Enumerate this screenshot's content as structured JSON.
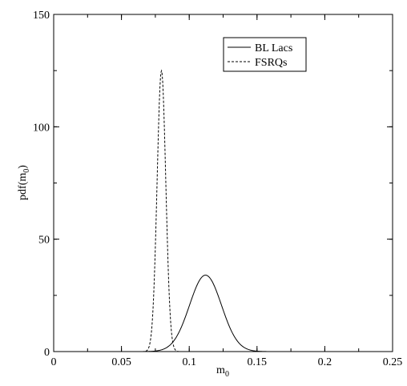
{
  "chart_data": {
    "type": "line",
    "title": "",
    "xlabel": "m",
    "xlabel_subscript": "0",
    "ylabel": "pdf(m",
    "ylabel_subscript": "0",
    "ylabel_suffix": ")",
    "xlim": [
      0,
      0.25
    ],
    "ylim": [
      0,
      150
    ],
    "xticks": [
      0,
      0.05,
      0.1,
      0.15,
      0.2,
      0.25
    ],
    "xtick_labels": [
      "0",
      "0.05",
      "0.1",
      "0.15",
      "0.2",
      "0.25"
    ],
    "yticks": [
      0,
      50,
      100,
      150
    ],
    "ytick_labels": [
      "0",
      "50",
      "100",
      "150"
    ],
    "grid": false,
    "legend_position": "top-right",
    "series": [
      {
        "name": "BL Lacs",
        "style": "solid",
        "color": "#000000",
        "shape": "gaussian",
        "peak_x": 0.112,
        "peak_y": 34,
        "sigma": 0.0118
      },
      {
        "name": "FSRQs",
        "style": "dashed",
        "color": "#000000",
        "shape": "gaussian",
        "peak_x": 0.0795,
        "peak_y": 125,
        "sigma": 0.0032
      }
    ]
  }
}
